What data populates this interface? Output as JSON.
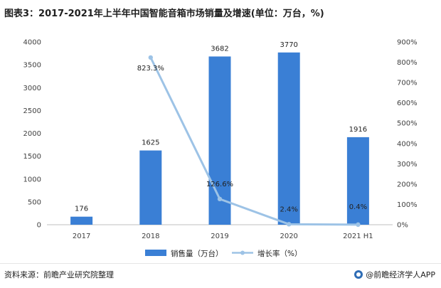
{
  "title": "图表3：2017-2021年上半年中国智能音箱市场销量及增速(单位：万台，%)",
  "chart_data": {
    "type": "bar+line",
    "categories": [
      "2017",
      "2018",
      "2019",
      "2020",
      "2021 H1"
    ],
    "series": [
      {
        "name": "销售量（万台）",
        "type": "bar",
        "axis": "left",
        "values": [
          176,
          1625,
          3682,
          3770,
          1916
        ]
      },
      {
        "name": "增长率（%）",
        "type": "line",
        "axis": "right",
        "values": [
          null,
          823.3,
          126.6,
          2.4,
          0.4
        ]
      }
    ],
    "bar_labels": [
      "176",
      "1625",
      "3682",
      "3770",
      "1916"
    ],
    "line_labels": [
      "",
      "823.3%",
      "126.6%",
      "2.4%",
      "0.4%"
    ],
    "left_axis": {
      "min": 0,
      "max": 4000,
      "step": 500,
      "ticks": [
        "0",
        "500",
        "1000",
        "1500",
        "2000",
        "2500",
        "3000",
        "3500",
        "4000"
      ]
    },
    "right_axis": {
      "min": 0,
      "max": 900,
      "step": 100,
      "ticks": [
        "0%",
        "100%",
        "200%",
        "300%",
        "400%",
        "500%",
        "600%",
        "700%",
        "800%",
        "900%"
      ]
    },
    "colors": {
      "bar": "#3a7fd5",
      "line": "#9dc3e6",
      "axis": "#bfbfbf"
    }
  },
  "legend": {
    "bar_label": "销售量（万台）",
    "line_label": "增长率（%）"
  },
  "footer": {
    "source": "资料来源：前瞻产业研究院整理",
    "brand": "@前瞻经济学人APP"
  }
}
